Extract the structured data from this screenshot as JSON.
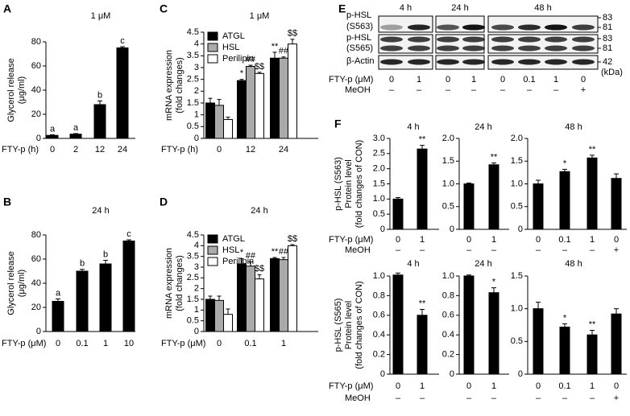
{
  "chart_data": [
    {
      "type": "bar",
      "panel": "A",
      "title": "1 μM",
      "ylabel": [
        "Glycerol release",
        "(μg/ml)"
      ],
      "xlabel": "FTY-p (h)",
      "categories": [
        "0",
        "2",
        "12",
        "24"
      ],
      "values": [
        2.5,
        3.5,
        28,
        75
      ],
      "errors": [
        0.5,
        0.5,
        3,
        1
      ],
      "annotations": [
        "a",
        "a",
        "b",
        "c"
      ],
      "color": "#000000",
      "ylim": [
        0,
        80
      ],
      "yticks": [
        0,
        20,
        40,
        60,
        80
      ]
    },
    {
      "type": "bar",
      "panel": "B",
      "title": "24 h",
      "ylabel": [
        "Glycerol release",
        "(μg/ml)"
      ],
      "xlabel": "FTY-p (μM)",
      "categories": [
        "0",
        "0.1",
        "1",
        "10"
      ],
      "values": [
        25,
        50,
        56,
        75
      ],
      "errors": [
        2,
        1.5,
        3,
        1
      ],
      "annotations": [
        "a",
        "b",
        "b",
        "c"
      ],
      "color": "#000000",
      "ylim": [
        0,
        80
      ],
      "yticks": [
        0,
        20,
        40,
        60,
        80
      ]
    },
    {
      "type": "grouped_bar",
      "panel": "C",
      "title": "1 μM",
      "ylabel": [
        "mRNA expression",
        "(fold changes)"
      ],
      "xlabel": "FTY-p (h)",
      "categories": [
        "0",
        "12",
        "24"
      ],
      "series": [
        {
          "name": "ATGL",
          "color": "#000000",
          "values": [
            1.5,
            2.45,
            3.4
          ],
          "errors": [
            0.2,
            0.05,
            0.25
          ],
          "annotations": [
            null,
            "*",
            "**"
          ]
        },
        {
          "name": "HSL",
          "color": "#aaaaaa",
          "values": [
            1.4,
            3.05,
            3.4
          ],
          "errors": [
            0.25,
            0.05,
            0.05
          ],
          "annotations": [
            null,
            "##",
            "##"
          ]
        },
        {
          "name": "Perilipin",
          "color": "#ffffff",
          "values": [
            0.8,
            2.75,
            4.0
          ],
          "errors": [
            0.1,
            0.05,
            0.2
          ],
          "annotations": [
            null,
            "$$",
            "$$"
          ]
        }
      ],
      "ylim": [
        0,
        4.5
      ],
      "yticks": [
        0,
        0.5,
        1,
        1.5,
        2,
        2.5,
        3,
        3.5,
        4,
        4.5
      ]
    },
    {
      "type": "grouped_bar",
      "panel": "D",
      "title": "24 h",
      "ylabel": [
        "mRNA expression",
        "(fold changes)"
      ],
      "xlabel": "FTY-p (μM)",
      "categories": [
        "0",
        "0.1",
        "1"
      ],
      "series": [
        {
          "name": "ATGL",
          "color": "#000000",
          "values": [
            1.5,
            3.15,
            3.4
          ],
          "errors": [
            0.15,
            0.25,
            0.05
          ],
          "annotations": [
            null,
            "*",
            "**"
          ]
        },
        {
          "name": "HSL",
          "color": "#aaaaaa",
          "values": [
            1.45,
            3.05,
            3.35
          ],
          "errors": [
            0.2,
            0.2,
            0.1
          ],
          "annotations": [
            null,
            "##",
            "##"
          ]
        },
        {
          "name": "Perilipin",
          "color": "#ffffff",
          "values": [
            0.8,
            2.45,
            4.0
          ],
          "errors": [
            0.25,
            0.2,
            0.05
          ],
          "annotations": [
            null,
            "$$",
            "$$"
          ]
        }
      ],
      "ylim": [
        0,
        4.5
      ],
      "yticks": [
        0,
        0.5,
        1,
        1.5,
        2,
        2.5,
        3,
        3.5,
        4,
        4.5
      ]
    },
    {
      "type": "bar",
      "panel": "F",
      "title": "4 h",
      "ylabel": [
        "p-HSL (S563)",
        "Protein level",
        "(fold changes of CON)"
      ],
      "xlabel": "FTY-p (μM)",
      "xlabel2": "MeOH",
      "categories": [
        "0",
        "1"
      ],
      "categories2": [
        "–",
        "–"
      ],
      "values": [
        1.0,
        2.65
      ],
      "errors": [
        0.05,
        0.12
      ],
      "annotations": [
        null,
        "**"
      ],
      "color": "#000000",
      "ylim": [
        0,
        3.0
      ],
      "yticks": [
        0,
        0.5,
        {
          "value": 1,
          "label": "1.0"
        },
        1.5,
        {
          "value": 2,
          "label": "2.0"
        },
        2.5,
        {
          "value": 3,
          "label": "3.0"
        }
      ]
    },
    {
      "type": "bar",
      "title": "24 h",
      "categories": [
        "0",
        "1"
      ],
      "categories2": [
        "–",
        "–"
      ],
      "values": [
        1.0,
        1.42
      ],
      "errors": [
        0.02,
        0.04
      ],
      "annotations": [
        null,
        "**"
      ],
      "color": "#000000",
      "ylim": [
        0,
        2.0
      ],
      "yticks": [
        0,
        0.5,
        {
          "value": 1,
          "label": "1.0"
        },
        1.5,
        {
          "value": 2,
          "label": "2.0"
        }
      ]
    },
    {
      "type": "bar",
      "title": "48 h",
      "categories": [
        "0",
        "0.1",
        "1",
        "0"
      ],
      "categories2": [
        "–",
        "–",
        "–",
        "+"
      ],
      "values": [
        1.0,
        1.27,
        1.57,
        1.12
      ],
      "errors": [
        0.08,
        0.05,
        0.06,
        0.1
      ],
      "annotations": [
        null,
        "*",
        "**",
        null
      ],
      "color": "#000000",
      "ylim": [
        0,
        2.0
      ],
      "yticks": [
        0,
        0.5,
        {
          "value": 1,
          "label": "1.0"
        },
        1.5,
        {
          "value": 2,
          "label": "2.0"
        }
      ]
    },
    {
      "type": "bar",
      "title": "4 h",
      "ylabel": [
        "p-HSL (S565)",
        "Protein level",
        "(fold changes of CON)"
      ],
      "xlabel": "FTY-p (μM)",
      "xlabel2": "MeOH",
      "categories": [
        "0",
        "1"
      ],
      "categories2": [
        "–",
        "–"
      ],
      "values": [
        1.01,
        0.6
      ],
      "errors": [
        0.02,
        0.06
      ],
      "annotations": [
        null,
        "**"
      ],
      "color": "#000000",
      "ylim": [
        0,
        1.0
      ],
      "yticks": [
        0,
        0.2,
        0.4,
        0.6,
        0.8,
        {
          "value": 1,
          "label": "1.0"
        }
      ]
    },
    {
      "type": "bar",
      "title": "24 h",
      "categories": [
        "0",
        "1"
      ],
      "categories2": [
        "–",
        "–"
      ],
      "values": [
        1.0,
        0.83
      ],
      "errors": [
        0.01,
        0.05
      ],
      "annotations": [
        null,
        "*"
      ],
      "color": "#000000",
      "ylim": [
        0,
        1.0
      ],
      "yticks": [
        0,
        0.2,
        0.4,
        0.6,
        0.8,
        {
          "value": 1,
          "label": "1.0"
        }
      ]
    },
    {
      "type": "bar",
      "title": "48 h",
      "categories": [
        "0",
        "0.1",
        "1",
        "0"
      ],
      "categories2": [
        "–",
        "–",
        "–",
        "+"
      ],
      "values": [
        1.0,
        0.72,
        0.6,
        0.92
      ],
      "errors": [
        0.1,
        0.05,
        0.07,
        0.08
      ],
      "annotations": [
        null,
        "*",
        "**",
        null
      ],
      "color": "#000000",
      "ylim": [
        0,
        1.5
      ],
      "yticks": [
        0,
        0.5,
        {
          "value": 1,
          "label": "1.0"
        },
        1.5
      ]
    }
  ],
  "blot": {
    "panel": "E",
    "groups": [
      "4 h",
      "24 h",
      "48 h"
    ],
    "rows": [
      [
        "p-HSL",
        "(S563)"
      ],
      [
        "p-HSL",
        "(S565)"
      ],
      [
        "β-Actin"
      ]
    ],
    "markers": [
      83,
      81,
      83,
      81,
      42
    ],
    "marker_unit": "(kDa)",
    "row_label": "FTY-p (μM)",
    "lanes": [
      "0",
      "1",
      "0",
      "1",
      "0",
      "0.1",
      "1",
      "0"
    ],
    "row_label2": "MeOH",
    "lanes2": [
      "–",
      "–",
      "–",
      "–",
      "–",
      "–",
      "–",
      "+"
    ]
  }
}
